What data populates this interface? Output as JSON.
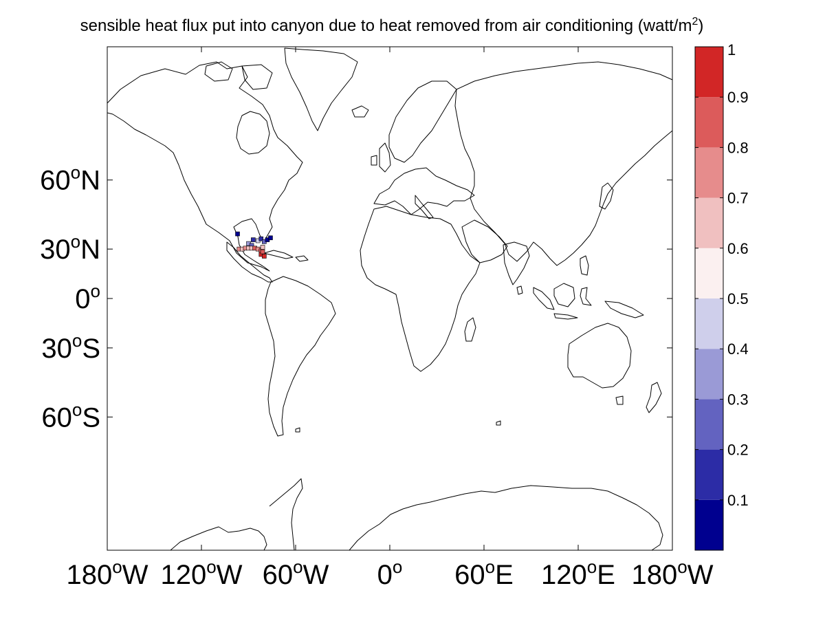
{
  "title": {
    "text": "sensible heat flux put into canyon due to heat removed from air conditioning (watt/m",
    "superscript": "2",
    "close": ")"
  },
  "chart_data": {
    "type": "heatmap",
    "projection": "mercator",
    "colormap": "blue-white-red",
    "lon_range": [
      -180,
      180
    ],
    "lat_range": [
      -80,
      80
    ],
    "x_ticks": [
      {
        "value": -180,
        "num": "180",
        "deg": "o",
        "hem": "W"
      },
      {
        "value": -120,
        "num": "120",
        "deg": "o",
        "hem": "W"
      },
      {
        "value": -60,
        "num": "60",
        "deg": "o",
        "hem": "W"
      },
      {
        "value": 0,
        "num": "0",
        "deg": "o",
        "hem": ""
      },
      {
        "value": 60,
        "num": "60",
        "deg": "o",
        "hem": "E"
      },
      {
        "value": 120,
        "num": "120",
        "deg": "o",
        "hem": "E"
      },
      {
        "value": 180,
        "num": "180",
        "deg": "o",
        "hem": "W"
      }
    ],
    "y_ticks": [
      {
        "value": 60,
        "num": "60",
        "deg": "o",
        "hem": "N"
      },
      {
        "value": 30,
        "num": "30",
        "deg": "o",
        "hem": "N"
      },
      {
        "value": 0,
        "num": "0",
        "deg": "o",
        "hem": ""
      },
      {
        "value": -30,
        "num": "30",
        "deg": "o",
        "hem": "S"
      },
      {
        "value": -60,
        "num": "60",
        "deg": "o",
        "hem": "S"
      }
    ],
    "colorbar": {
      "range": [
        0,
        1
      ],
      "bins": [
        {
          "lo": 0.0,
          "hi": 0.1,
          "color": "#00008f"
        },
        {
          "lo": 0.1,
          "hi": 0.2,
          "color": "#2c2ca6"
        },
        {
          "lo": 0.2,
          "hi": 0.3,
          "color": "#6363c0"
        },
        {
          "lo": 0.3,
          "hi": 0.4,
          "color": "#9a9ad6"
        },
        {
          "lo": 0.4,
          "hi": 0.5,
          "color": "#cfcfeb"
        },
        {
          "lo": 0.5,
          "hi": 0.6,
          "color": "#fbf0f0"
        },
        {
          "lo": 0.6,
          "hi": 0.7,
          "color": "#f0c0c0"
        },
        {
          "lo": 0.7,
          "hi": 0.8,
          "color": "#e68c8c"
        },
        {
          "lo": 0.8,
          "hi": 0.9,
          "color": "#dc5b5b"
        },
        {
          "lo": 0.9,
          "hi": 1.0,
          "color": "#d22626"
        }
      ],
      "tick_labels": [
        "0.1",
        "0.2",
        "0.3",
        "0.4",
        "0.5",
        "0.6",
        "0.7",
        "0.8",
        "0.9",
        "1"
      ]
    },
    "cells": [
      {
        "lon": -97,
        "lat": 38,
        "value": 0.05
      },
      {
        "lon": -87,
        "lat": 35,
        "value": 0.15
      },
      {
        "lon": -84,
        "lat": 34.5,
        "value": 0.45
      },
      {
        "lon": -82,
        "lat": 35.5,
        "value": 0.2
      },
      {
        "lon": -80,
        "lat": 34,
        "value": 0.3
      },
      {
        "lon": -78,
        "lat": 35,
        "value": 0.1
      },
      {
        "lon": -76,
        "lat": 36,
        "value": 0.05
      },
      {
        "lon": -90,
        "lat": 33,
        "value": 0.35
      },
      {
        "lon": -88,
        "lat": 32,
        "value": 0.25
      },
      {
        "lon": -96,
        "lat": 30,
        "value": 0.75
      },
      {
        "lon": -94,
        "lat": 30,
        "value": 0.65
      },
      {
        "lon": -92,
        "lat": 30.5,
        "value": 0.8
      },
      {
        "lon": -90,
        "lat": 30.5,
        "value": 0.7
      },
      {
        "lon": -88,
        "lat": 30.5,
        "value": 0.62
      },
      {
        "lon": -86,
        "lat": 30.5,
        "value": 0.85
      },
      {
        "lon": -84,
        "lat": 30,
        "value": 0.72
      },
      {
        "lon": -82,
        "lat": 29,
        "value": 0.9
      },
      {
        "lon": -82,
        "lat": 27,
        "value": 0.95
      },
      {
        "lon": -81,
        "lat": 28.5,
        "value": 0.82
      },
      {
        "lon": -80,
        "lat": 26,
        "value": 0.92
      },
      {
        "lon": -81,
        "lat": 31,
        "value": 0.68
      }
    ]
  }
}
